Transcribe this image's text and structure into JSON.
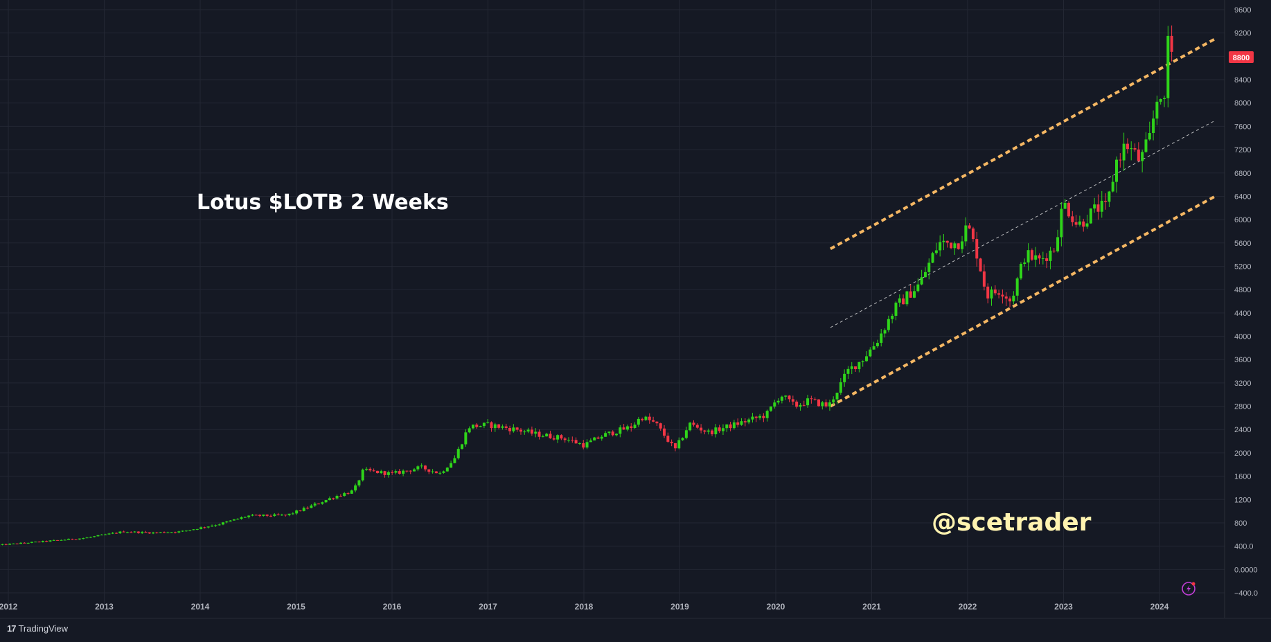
{
  "colors": {
    "background": "#151924",
    "grid": "#232733",
    "axis_text": "#b2b5be",
    "up": "#2fd41a",
    "down": "#f23645",
    "channel": "#f5b763",
    "midline": "#e6e6e6",
    "watermark": "#fff3b0",
    "price_badge": "#f23645"
  },
  "annotations": {
    "title": "Lotus $LOTB 2 Weeks",
    "watermark": "@scetrader",
    "price_badge": "8800"
  },
  "footer": {
    "logo_mark": "17",
    "logo_text": "TradingView"
  },
  "icons": {
    "lightning": "lightning-icon"
  },
  "chart_data": {
    "type": "candlestick",
    "interval": "2 Weeks",
    "ylim": [
      -400,
      9600
    ],
    "y_ticks": [
      "9600",
      "9200",
      "8800",
      "8400",
      "8000",
      "7600",
      "7200",
      "6800",
      "6400",
      "6000",
      "5600",
      "5200",
      "4800",
      "4400",
      "4000",
      "3600",
      "3200",
      "2800",
      "2400",
      "2000",
      "1600",
      "1200",
      "800",
      "400.0",
      "0.0000",
      "−400.0"
    ],
    "x_ticks": [
      "2012",
      "2013",
      "2014",
      "2015",
      "2016",
      "2017",
      "2018",
      "2019",
      "2020",
      "2021",
      "2022",
      "2023",
      "2024"
    ],
    "last_price": 8800,
    "price_path": [
      [
        2011.9,
        420
      ],
      [
        2012.5,
        500
      ],
      [
        2012.8,
        540
      ],
      [
        2013.2,
        650
      ],
      [
        2013.5,
        630
      ],
      [
        2013.8,
        650
      ],
      [
        2014.2,
        780
      ],
      [
        2014.5,
        920
      ],
      [
        2014.9,
        930
      ],
      [
        2015.1,
        1050
      ],
      [
        2015.4,
        1250
      ],
      [
        2015.6,
        1350
      ],
      [
        2015.7,
        1700
      ],
      [
        2016.0,
        1640
      ],
      [
        2016.3,
        1750
      ],
      [
        2016.5,
        1650
      ],
      [
        2016.65,
        1900
      ],
      [
        2016.8,
        2450
      ],
      [
        2017.0,
        2480
      ],
      [
        2017.3,
        2400
      ],
      [
        2017.5,
        2320
      ],
      [
        2017.8,
        2250
      ],
      [
        2018.0,
        2130
      ],
      [
        2018.2,
        2300
      ],
      [
        2018.5,
        2450
      ],
      [
        2018.6,
        2620
      ],
      [
        2018.75,
        2500
      ],
      [
        2018.95,
        2050
      ],
      [
        2019.1,
        2500
      ],
      [
        2019.3,
        2350
      ],
      [
        2019.6,
        2500
      ],
      [
        2019.9,
        2650
      ],
      [
        2020.05,
        3000
      ],
      [
        2020.2,
        2800
      ],
      [
        2020.35,
        2900
      ],
      [
        2020.55,
        2800
      ],
      [
        2020.75,
        3400
      ],
      [
        2020.9,
        3600
      ],
      [
        2021.05,
        3900
      ],
      [
        2021.25,
        4500
      ],
      [
        2021.5,
        4900
      ],
      [
        2021.7,
        5600
      ],
      [
        2021.9,
        5600
      ],
      [
        2022.0,
        5900
      ],
      [
        2022.1,
        5400
      ],
      [
        2022.2,
        4700
      ],
      [
        2022.35,
        4800
      ],
      [
        2022.45,
        4600
      ],
      [
        2022.6,
        5400
      ],
      [
        2022.75,
        5300
      ],
      [
        2022.9,
        5500
      ],
      [
        2023.0,
        6300
      ],
      [
        2023.15,
        5900
      ],
      [
        2023.35,
        6200
      ],
      [
        2023.45,
        6200
      ],
      [
        2023.55,
        7000
      ],
      [
        2023.65,
        7300
      ],
      [
        2023.8,
        7000
      ],
      [
        2023.9,
        7400
      ],
      [
        2024.0,
        8300
      ],
      [
        2024.05,
        7900
      ],
      [
        2024.08,
        9200
      ],
      [
        2024.14,
        8800
      ]
    ],
    "trend_channel": {
      "upper": [
        [
          2020.57,
          5500
        ],
        [
          2024.58,
          9100
        ]
      ],
      "middle": [
        [
          2020.57,
          4150
        ],
        [
          2024.58,
          7700
        ]
      ],
      "lower": [
        [
          2020.57,
          2800
        ],
        [
          2024.58,
          6400
        ]
      ]
    }
  }
}
